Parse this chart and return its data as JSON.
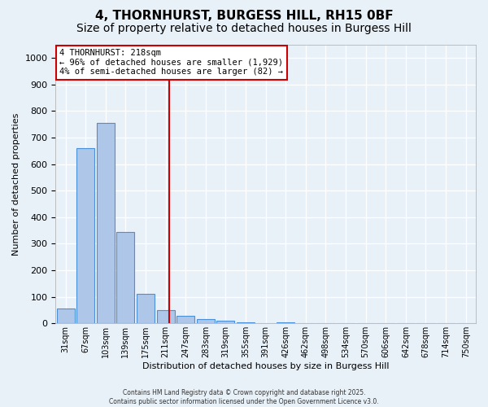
{
  "title1": "4, THORNHURST, BURGESS HILL, RH15 0BF",
  "title2": "Size of property relative to detached houses in Burgess Hill",
  "xlabel": "Distribution of detached houses by size in Burgess Hill",
  "ylabel": "Number of detached properties",
  "bin_labels": [
    "31sqm",
    "67sqm",
    "103sqm",
    "139sqm",
    "175sqm",
    "211sqm",
    "247sqm",
    "283sqm",
    "319sqm",
    "355sqm",
    "391sqm",
    "426sqm",
    "462sqm",
    "498sqm",
    "534sqm",
    "570sqm",
    "606sqm",
    "642sqm",
    "678sqm",
    "714sqm",
    "750sqm"
  ],
  "bar_values": [
    55,
    660,
    755,
    345,
    110,
    50,
    30,
    15,
    10,
    5,
    0,
    5,
    0,
    0,
    0,
    0,
    0,
    0,
    0,
    0,
    0
  ],
  "bar_color": "#aec6e8",
  "bar_edge_color": "#4a90d9",
  "ylim": [
    0,
    1050
  ],
  "yticks": [
    0,
    100,
    200,
    300,
    400,
    500,
    600,
    700,
    800,
    900,
    1000
  ],
  "red_line_color": "#cc0000",
  "annotation_line1": "4 THORNHURST: 218sqm",
  "annotation_line2": "← 96% of detached houses are smaller (1,929)",
  "annotation_line3": "4% of semi-detached houses are larger (82) →",
  "footer_line1": "Contains HM Land Registry data © Crown copyright and database right 2025.",
  "footer_line2": "Contains public sector information licensed under the Open Government Licence v3.0.",
  "bg_color": "#e8f0f8",
  "grid_color": "#ffffff",
  "title_fontsize": 11,
  "subtitle_fontsize": 10
}
